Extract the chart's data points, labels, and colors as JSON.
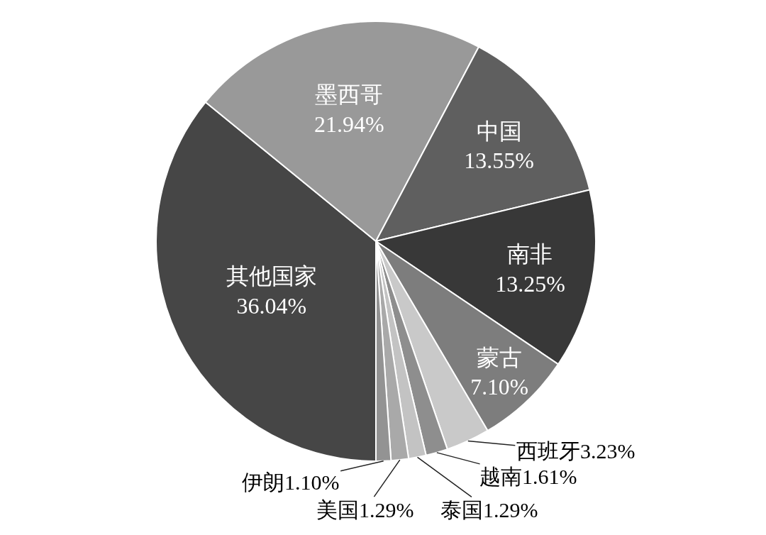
{
  "chart_data": {
    "type": "pie",
    "categories": [
      "其他国家",
      "墨西哥",
      "中国",
      "南非",
      "蒙古",
      "西班牙",
      "越南",
      "泰国",
      "美国",
      "伊朗"
    ],
    "values": [
      36.04,
      21.94,
      13.55,
      13.25,
      7.1,
      3.23,
      1.61,
      1.29,
      1.29,
      1.1
    ],
    "value_labels": [
      "36.04%",
      "21.94%",
      "13.55%",
      "13.25%",
      "7.10%",
      "3.23%",
      "1.61%",
      "1.29%",
      "1.29%",
      "1.10%"
    ],
    "colors": [
      "#464646",
      "#999999",
      "#5f5f5f",
      "#383838",
      "#7d7d7d",
      "#c9c9c9",
      "#8e8e8e",
      "#c3c3c3",
      "#a9a9a9",
      "#939393"
    ]
  }
}
